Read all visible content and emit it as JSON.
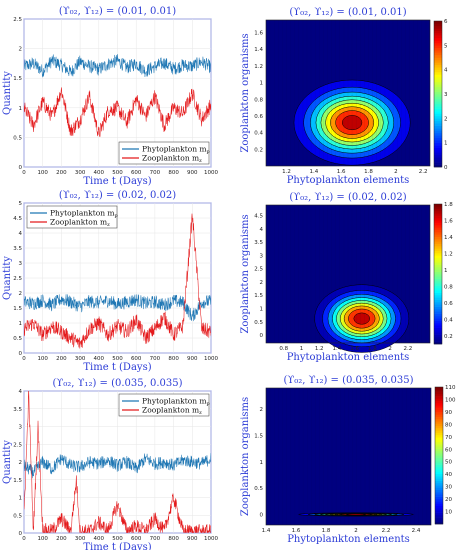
{
  "chart_data": [
    {
      "type": "line",
      "title": "(ϒ₀₂, ϒ₁₂) = (0.01, 0.01)",
      "xlabel": "Time t (Days)",
      "ylabel": "Quantity",
      "xlim": [
        0,
        1000
      ],
      "ylim": [
        0,
        2.5
      ],
      "xticks": [
        0,
        100,
        200,
        300,
        400,
        500,
        600,
        700,
        800,
        900,
        1000
      ],
      "yticks": [
        0,
        0.5,
        1,
        1.5,
        2,
        2.5
      ],
      "ytick_labels": [
        "0",
        "0.5",
        "1",
        "1.5",
        "2",
        "2.5"
      ],
      "legend_position": "bottom-right",
      "series": [
        {
          "name": "Phytoplankton m_p",
          "color": "#1f77b4",
          "x": [
            0,
            50,
            100,
            150,
            200,
            250,
            300,
            350,
            400,
            450,
            500,
            550,
            600,
            650,
            700,
            750,
            800,
            850,
            900,
            950,
            1000
          ],
          "values": [
            1.7,
            1.75,
            1.62,
            1.8,
            1.72,
            1.6,
            1.78,
            1.7,
            1.65,
            1.74,
            1.8,
            1.68,
            1.75,
            1.62,
            1.7,
            1.76,
            1.66,
            1.72,
            1.7,
            1.78,
            1.68
          ]
        },
        {
          "name": "Zooplankton m_z",
          "color": "#e41a1c",
          "x": [
            0,
            50,
            100,
            150,
            200,
            250,
            300,
            350,
            400,
            450,
            500,
            550,
            600,
            650,
            700,
            750,
            800,
            850,
            900,
            950,
            1000
          ],
          "values": [
            1.0,
            0.7,
            1.1,
            0.85,
            1.3,
            0.6,
            0.8,
            1.2,
            0.55,
            0.95,
            1.0,
            0.75,
            1.15,
            0.85,
            1.2,
            0.7,
            1.0,
            0.9,
            1.25,
            0.8,
            1.05
          ]
        }
      ]
    },
    {
      "type": "heatmap",
      "title": "(ϒ₀₂, ϒ₁₂) = (0.01, 0.01)",
      "xlabel": "Phytoplankton elements",
      "ylabel": "Zooplankton organisms",
      "xlim": [
        1.05,
        2.25
      ],
      "ylim": [
        0,
        1.75
      ],
      "xticks": [
        1.2,
        1.4,
        1.6,
        1.8,
        2,
        2.2
      ],
      "xtick_labels": [
        "1.2",
        "1.4",
        "1.6",
        "1.8",
        "2",
        "2.2"
      ],
      "yticks": [
        0.2,
        0.4,
        0.6,
        0.8,
        1,
        1.2,
        1.4,
        1.6
      ],
      "ytick_labels": [
        "0.2",
        "0.4",
        "0.6",
        "0.8",
        "1",
        "1.2",
        "1.4",
        "1.6"
      ],
      "peak": {
        "x": 1.68,
        "y": 0.52,
        "sx": 0.2,
        "sy": 0.24,
        "max": 6
      },
      "colorbar": {
        "min": 0,
        "max": 6,
        "ticks": [
          0,
          1,
          2,
          3,
          4,
          5,
          6
        ],
        "tick_labels": [
          "0",
          "1",
          "2",
          "3",
          "4",
          "5",
          "6"
        ]
      }
    },
    {
      "type": "line",
      "title": "(ϒ₀₂, ϒ₁₂) = (0.02, 0.02)",
      "xlabel": "Time t (Days)",
      "ylabel": "Quantity",
      "xlim": [
        0,
        1000
      ],
      "ylim": [
        0,
        5
      ],
      "xticks": [
        0,
        100,
        200,
        300,
        400,
        500,
        600,
        700,
        800,
        900,
        1000
      ],
      "yticks": [
        0,
        0.5,
        1,
        1.5,
        2,
        2.5,
        3,
        3.5,
        4,
        4.5,
        5
      ],
      "ytick_labels": [
        "0",
        "0.5",
        "1",
        "1.5",
        "2",
        "2.5",
        "3",
        "3.5",
        "4",
        "4.5",
        "5"
      ],
      "legend_position": "top-left",
      "series": [
        {
          "name": "Phytoplankton m_p",
          "color": "#1f77b4",
          "x": [
            0,
            50,
            100,
            150,
            200,
            250,
            300,
            350,
            400,
            450,
            500,
            550,
            600,
            650,
            700,
            750,
            800,
            850,
            900,
            950,
            1000
          ],
          "values": [
            1.7,
            1.65,
            1.75,
            1.6,
            1.8,
            1.7,
            1.55,
            1.72,
            1.68,
            1.75,
            1.62,
            1.7,
            1.78,
            1.65,
            1.7,
            1.6,
            1.74,
            1.68,
            1.2,
            1.7,
            1.72
          ]
        },
        {
          "name": "Zooplankton m_z",
          "color": "#e41a1c",
          "x": [
            0,
            50,
            100,
            150,
            200,
            250,
            300,
            350,
            400,
            450,
            500,
            550,
            600,
            650,
            700,
            750,
            800,
            850,
            900,
            950,
            1000
          ],
          "values": [
            0.8,
            1.0,
            0.6,
            0.9,
            0.7,
            0.5,
            0.3,
            0.8,
            1.0,
            0.6,
            0.9,
            0.7,
            1.1,
            0.5,
            0.8,
            1.2,
            0.6,
            0.9,
            4.6,
            0.8,
            0.7
          ]
        }
      ]
    },
    {
      "type": "heatmap",
      "title": "(ϒ₀₂, ϒ₁₂) = (0.02, 0.02)",
      "xlabel": "Phytoplankton elements",
      "ylabel": "Zooplankton organisms",
      "xlim": [
        0.6,
        2.45
      ],
      "ylim": [
        -0.3,
        4.9
      ],
      "xticks": [
        0.8,
        1,
        1.2,
        1.4,
        1.6,
        1.8,
        2,
        2.2
      ],
      "xtick_labels": [
        "0.8",
        "1",
        "1.2",
        "1.4",
        "1.6",
        "1.8",
        "2",
        "2.2"
      ],
      "yticks": [
        0,
        0.5,
        1,
        1.5,
        2,
        2.5,
        3,
        3.5,
        4,
        4.5
      ],
      "ytick_labels": [
        "0",
        "0.5",
        "1",
        "1.5",
        "2",
        "2.5",
        "3",
        "3.5",
        "4",
        "4.5"
      ],
      "peak": {
        "x": 1.68,
        "y": 0.62,
        "sx": 0.25,
        "sy": 0.6,
        "max": 1.8
      },
      "colorbar": {
        "min": 0.1,
        "max": 1.8,
        "ticks": [
          0.2,
          0.4,
          0.6,
          0.8,
          1,
          1.2,
          1.4,
          1.6,
          1.8
        ],
        "tick_labels": [
          "0.2",
          "0.4",
          "0.6",
          "0.8",
          "1",
          "1.2",
          "1.4",
          "1.6",
          "1.8"
        ]
      }
    },
    {
      "type": "line",
      "title": "(ϒ₀₂, ϒ₁₂) = (0.035, 0.035)",
      "xlabel": "Time t (Days)",
      "ylabel": "Quantity",
      "xlim": [
        0,
        1000
      ],
      "ylim": [
        0,
        4
      ],
      "xticks": [
        0,
        100,
        200,
        300,
        400,
        500,
        600,
        700,
        800,
        900,
        1000
      ],
      "yticks": [
        0,
        0.5,
        1,
        1.5,
        2,
        2.5,
        3,
        3.5,
        4
      ],
      "ytick_labels": [
        "0",
        "0.5",
        "1",
        "1.5",
        "2",
        "2.5",
        "3",
        "3.5",
        "4"
      ],
      "legend_position": "top-right",
      "series": [
        {
          "name": "Phytoplankton m_p",
          "color": "#1f77b4",
          "x": [
            0,
            50,
            100,
            150,
            200,
            250,
            300,
            350,
            400,
            450,
            500,
            550,
            600,
            650,
            700,
            750,
            800,
            850,
            900,
            950,
            1000
          ],
          "values": [
            1.9,
            1.7,
            2.0,
            1.8,
            2.1,
            1.9,
            1.85,
            2.0,
            1.95,
            2.05,
            1.9,
            2.0,
            1.8,
            2.1,
            1.95,
            2.0,
            1.9,
            2.05,
            2.0,
            1.95,
            2.1
          ]
        },
        {
          "name": "Zooplankton m_z",
          "color": "#e41a1c",
          "x": [
            0,
            25,
            50,
            75,
            100,
            150,
            200,
            250,
            280,
            300,
            350,
            400,
            450,
            500,
            550,
            600,
            650,
            700,
            750,
            800,
            850,
            900,
            950,
            1000
          ],
          "values": [
            0.5,
            3.9,
            0.05,
            3.0,
            0.1,
            0.05,
            0.4,
            0.05,
            1.5,
            0.05,
            0.05,
            0.3,
            0.05,
            0.8,
            0.05,
            0.2,
            0.05,
            0.4,
            0.05,
            1.0,
            0.05,
            0.05,
            0.05,
            0.05
          ]
        }
      ]
    },
    {
      "type": "heatmap",
      "title": "(ϒ₀₂, ϒ₁₂) = (0.035, 0.035)",
      "xlabel": "Phytoplankton elements",
      "ylabel": "Zooplankton organisms",
      "xlim": [
        1.4,
        2.5
      ],
      "ylim": [
        -0.2,
        2.4
      ],
      "xticks": [
        1.4,
        1.6,
        1.8,
        2,
        2.2,
        2.4
      ],
      "xtick_labels": [
        "1.4",
        "1.6",
        "1.8",
        "2",
        "2.2",
        "2.4"
      ],
      "yticks": [
        0,
        0.5,
        1,
        1.5,
        2
      ],
      "ytick_labels": [
        "0",
        "0.5",
        "1",
        "1.5",
        "2"
      ],
      "peak": {
        "x": 2.0,
        "y": 0.0,
        "sx": 0.18,
        "sy": 0.015,
        "max": 110
      },
      "colorbar": {
        "min": 0,
        "max": 110,
        "ticks": [
          10,
          20,
          30,
          40,
          50,
          60,
          70,
          80,
          90,
          100,
          110
        ],
        "tick_labels": [
          "10",
          "20",
          "30",
          "40",
          "50",
          "60",
          "70",
          "80",
          "90",
          "100",
          "110"
        ]
      }
    }
  ]
}
